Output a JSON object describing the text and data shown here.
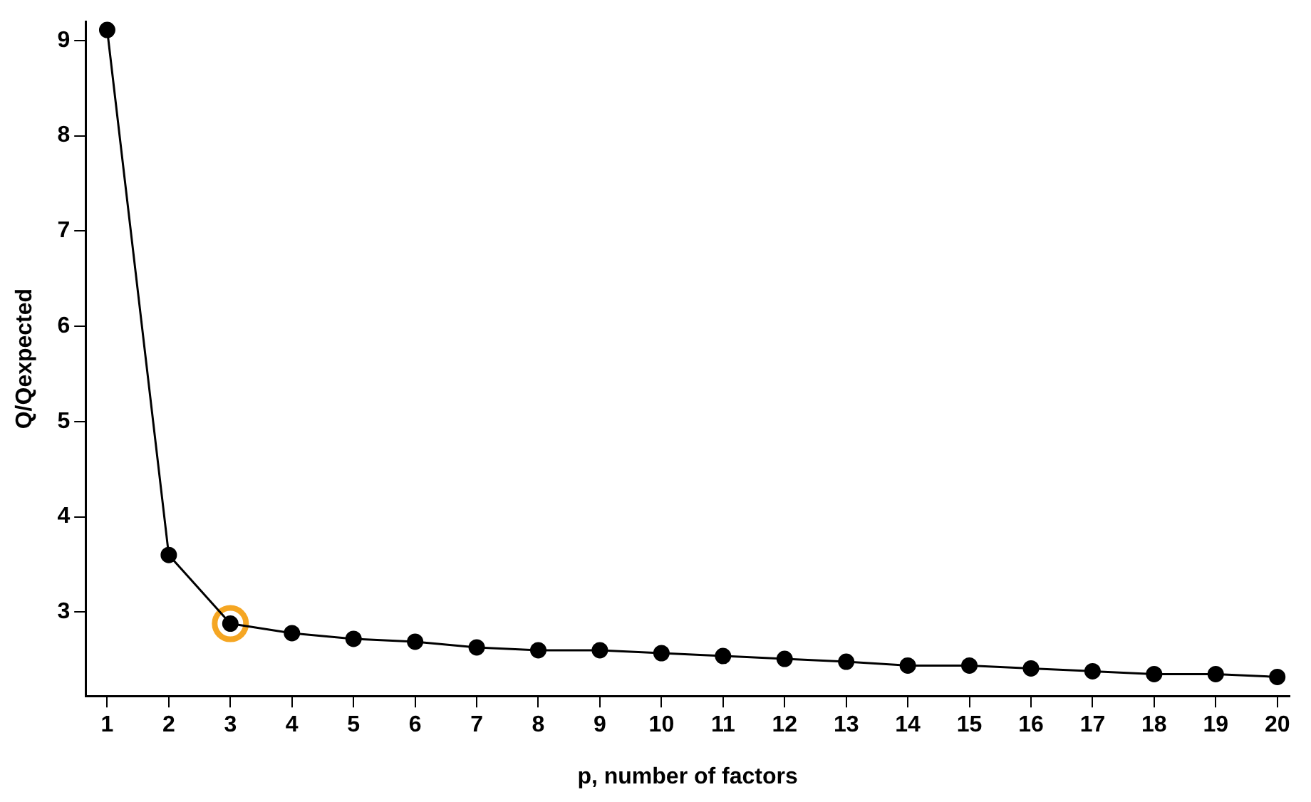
{
  "chart_data": {
    "type": "line",
    "xlabel": "p, number of factors",
    "ylabel": "Q/Qexpected",
    "x": [
      1,
      2,
      3,
      4,
      5,
      6,
      7,
      8,
      9,
      10,
      11,
      12,
      13,
      14,
      15,
      16,
      17,
      18,
      19,
      20
    ],
    "series": [
      {
        "color": "#000000",
        "marker": "circle",
        "values": [
          9.11,
          3.6,
          2.88,
          2.78,
          2.72,
          2.69,
          2.63,
          2.6,
          2.6,
          2.57,
          2.54,
          2.51,
          2.48,
          2.44,
          2.44,
          2.41,
          2.38,
          2.35,
          2.35,
          2.32
        ]
      },
      {
        "type": "scatter",
        "color": "#f5a623",
        "marker": "circle",
        "x": [
          3
        ],
        "values": [
          2.88
        ]
      }
    ],
    "xlim": [
      0.65,
      20.2
    ],
    "xticks": [
      1,
      2,
      3,
      4,
      5,
      6,
      7,
      8,
      9,
      10,
      11,
      12,
      13,
      14,
      15,
      16,
      17,
      18,
      19,
      20
    ],
    "ylim": [
      2.12,
      9.2
    ],
    "yticks": [
      3,
      4,
      5,
      6,
      7,
      8,
      9
    ],
    "grid": false,
    "legend": false
  }
}
